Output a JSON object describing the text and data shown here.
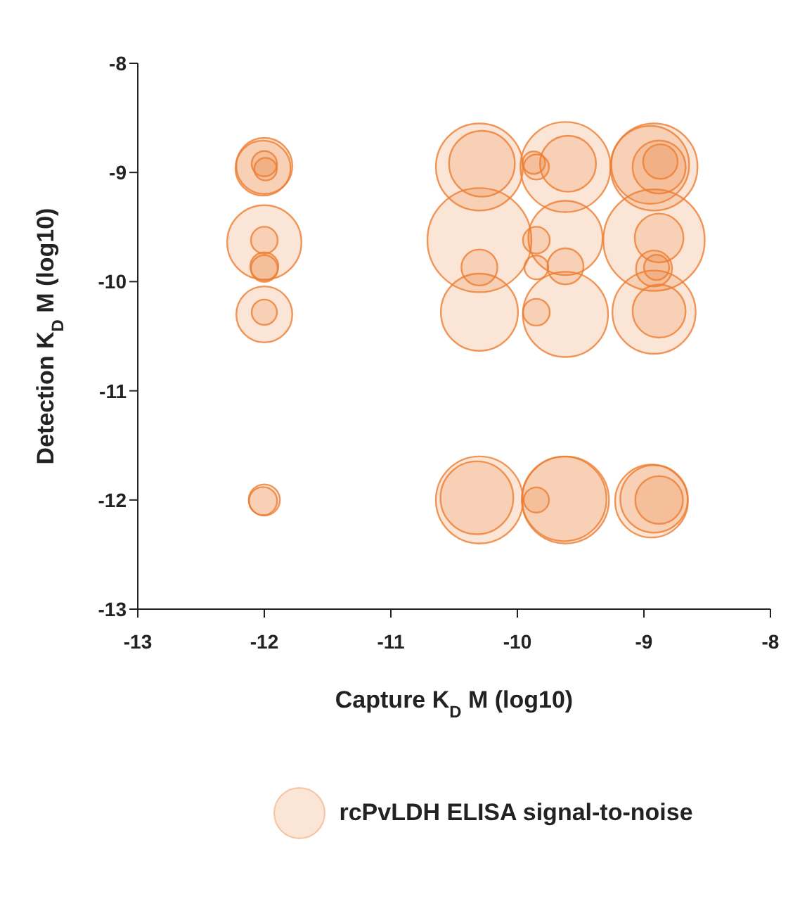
{
  "chart_data": {
    "type": "bubble",
    "xlabel": "Capture K$_{D}$ M (log10)",
    "ylabel": "Detection K$_{D}$ M (log10)",
    "xlim": [
      -13,
      -8
    ],
    "xticks": [
      -13,
      -12,
      -11,
      -10,
      -9,
      -8
    ],
    "ylim": [
      -13,
      -8
    ],
    "yticks": [
      -13,
      -12,
      -11,
      -10,
      -9,
      -8
    ],
    "grid": false,
    "legend": "bottom",
    "marker": "circle",
    "series": [
      {
        "name": "rcPvLDH ELISA signal-to-noise",
        "color": "#ed7d31",
        "x": [
          -10.3,
          -8.92,
          -9.62,
          -10.3,
          -10.3,
          -8.92,
          -9.62,
          -10.32,
          -8.95,
          -8.92,
          -9.63,
          -9.62,
          -9.62,
          -8.94,
          -12,
          -8.92,
          -10.3,
          -12,
          -12,
          -8.88,
          -8.88,
          -12.01,
          -10.28,
          -9.6,
          -8.88,
          -8.88,
          -8.87,
          -8.92,
          -10.3,
          -9.62,
          -12,
          -12,
          -8.9,
          -9.85,
          -9.85,
          -9.85,
          -9.85,
          -12,
          -9.85,
          -12.01,
          -12,
          -12,
          -9.87,
          -12,
          -11.99
        ],
        "values": [
          -9.62,
          -9.62,
          -8.95,
          -8.95,
          -12,
          -8.95,
          -12,
          -11.98,
          -8.93,
          -10.28,
          -11.99,
          -10.3,
          -9.6,
          -12.01,
          -9.64,
          -11.99,
          -10.28,
          -8.94,
          -10.3,
          -12,
          -8.95,
          -8.96,
          -8.92,
          -8.92,
          -10.27,
          -9.6,
          -8.9,
          -9.88,
          -9.87,
          -9.86,
          -12,
          -9.86,
          -9.87,
          -9.62,
          -10.28,
          -12,
          -8.95,
          -9.62,
          -9.87,
          -12.01,
          -8.92,
          -10.28,
          -8.91,
          -9.88,
          -8.97
        ],
        "sizes": [
          1,
          0.95,
          0.75,
          0.7,
          0.7,
          0.7,
          0.7,
          0.49,
          0.56,
          0.64,
          0.66,
          0.67,
          0.51,
          0.49,
          0.51,
          0.42,
          0.55,
          0.29,
          0.29,
          0.21,
          0.26,
          0.28,
          0.4,
          0.29,
          0.26,
          0.22,
          0.11,
          0.12,
          0.12,
          0.12,
          0.09,
          0.073,
          0.059,
          0.066,
          0.066,
          0.059,
          0.059,
          0.066,
          0.053,
          0.073,
          0.059,
          0.059,
          0.047,
          0.066,
          0.047
        ]
      }
    ]
  }
}
